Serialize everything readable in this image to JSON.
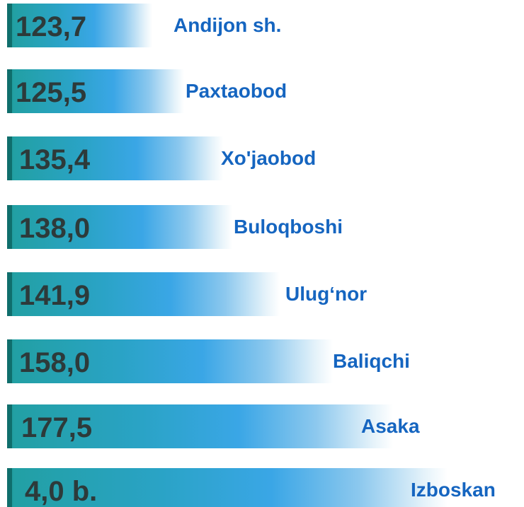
{
  "items": [
    {
      "value": "123,7",
      "name": "Andijon sh."
    },
    {
      "value": "125,5",
      "name": "Paxtaobod"
    },
    {
      "value": "135,4",
      "name": "Xo'jaobod"
    },
    {
      "value": "138,0",
      "name": "Buloqboshi"
    },
    {
      "value": "141,9",
      "name": "Ulug‘nor"
    },
    {
      "value": "158,0",
      "name": "Baliqchi"
    },
    {
      "value": "177,5",
      "name": "Asaka"
    },
    {
      "value": "4,0 b.",
      "name": "Izboskan"
    }
  ]
}
